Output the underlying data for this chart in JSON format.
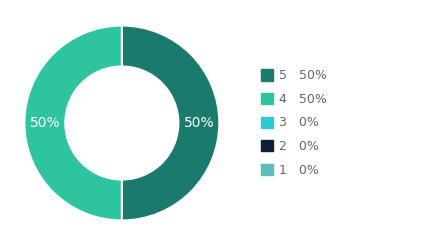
{
  "labels": [
    "5",
    "4",
    "3",
    "2",
    "1"
  ],
  "values": [
    50,
    50,
    0,
    0,
    0
  ],
  "display_values": [
    "50%",
    "50%",
    "0%",
    "0%",
    "0%"
  ],
  "colors": [
    "#1a7a6e",
    "#2ec4a0",
    "#29ccd4",
    "#0d2137",
    "#5bbcb8"
  ],
  "background_color": "#ffffff",
  "wedge_text_color": "#ffffff",
  "legend_text_color": "#666666",
  "font_size_wedge": 10,
  "font_size_legend": 9,
  "donut_width": 0.42,
  "startangle": 90
}
